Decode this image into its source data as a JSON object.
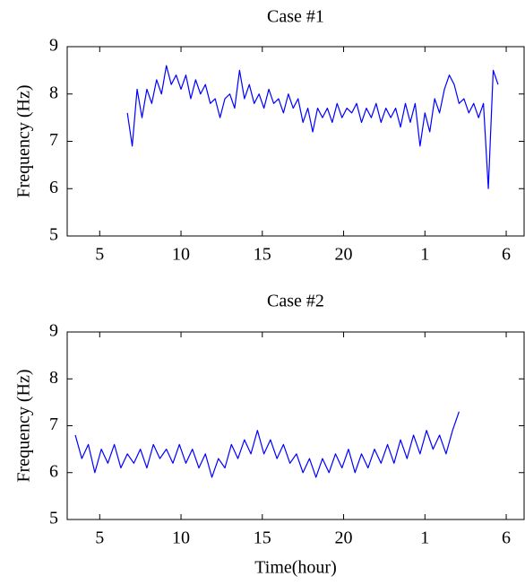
{
  "chart_data": [
    {
      "type": "line",
      "title": "Case #1",
      "ylabel": "Frequency (Hz)",
      "color": "#0000ff",
      "xlim": [
        3,
        31.1
      ],
      "ylim": [
        5,
        9
      ],
      "xticks": [
        5,
        10,
        15,
        20,
        {
          "value": 25,
          "label": "1"
        },
        {
          "value": 30,
          "label": "6"
        }
      ],
      "yticks": [
        5,
        6,
        7,
        8,
        9
      ],
      "x": [
        6.7,
        7.0,
        7.3,
        7.6,
        7.9,
        8.2,
        8.5,
        8.8,
        9.1,
        9.4,
        9.7,
        10.0,
        10.3,
        10.6,
        10.9,
        11.2,
        11.5,
        11.8,
        12.1,
        12.4,
        12.7,
        13.0,
        13.3,
        13.6,
        13.9,
        14.2,
        14.5,
        14.8,
        15.1,
        15.4,
        15.7,
        16.0,
        16.3,
        16.6,
        16.9,
        17.2,
        17.5,
        17.8,
        18.1,
        18.4,
        18.7,
        19.0,
        19.3,
        19.6,
        19.9,
        20.2,
        20.5,
        20.8,
        21.1,
        21.4,
        21.7,
        22.0,
        22.3,
        22.6,
        22.9,
        23.2,
        23.5,
        23.8,
        24.1,
        24.4,
        24.7,
        25.0,
        25.3,
        25.6,
        25.9,
        26.2,
        26.5,
        26.8,
        27.1,
        27.4,
        27.7,
        28.0,
        28.3,
        28.6,
        28.9,
        29.2,
        29.5
      ],
      "values": [
        7.6,
        6.9,
        8.1,
        7.5,
        8.1,
        7.8,
        8.3,
        8.0,
        8.6,
        8.2,
        8.4,
        8.1,
        8.4,
        7.9,
        8.3,
        8.0,
        8.2,
        7.8,
        7.9,
        7.5,
        7.9,
        8.0,
        7.7,
        8.5,
        7.9,
        8.2,
        7.8,
        8.0,
        7.7,
        8.1,
        7.8,
        7.9,
        7.6,
        8.0,
        7.7,
        7.9,
        7.4,
        7.7,
        7.2,
        7.7,
        7.5,
        7.7,
        7.4,
        7.8,
        7.5,
        7.7,
        7.6,
        7.8,
        7.4,
        7.7,
        7.5,
        7.8,
        7.4,
        7.7,
        7.5,
        7.7,
        7.3,
        7.8,
        7.4,
        7.8,
        6.9,
        7.6,
        7.2,
        7.9,
        7.6,
        8.1,
        8.4,
        8.2,
        7.8,
        7.9,
        7.6,
        7.8,
        7.5,
        7.8,
        6.0,
        8.5,
        8.2
      ]
    },
    {
      "type": "line",
      "title": "Case #2",
      "ylabel": "Frequency (Hz)",
      "xlabel": "Time(hour)",
      "color": "#0000ff",
      "xlim": [
        3,
        31.1
      ],
      "ylim": [
        5,
        9
      ],
      "xticks": [
        5,
        10,
        15,
        20,
        {
          "value": 25,
          "label": "1"
        },
        {
          "value": 30,
          "label": "6"
        }
      ],
      "yticks": [
        5,
        6,
        7,
        8,
        9
      ],
      "x": [
        3.5,
        3.9,
        4.3,
        4.7,
        5.1,
        5.5,
        5.9,
        6.3,
        6.7,
        7.1,
        7.5,
        7.9,
        8.3,
        8.7,
        9.1,
        9.5,
        9.9,
        10.3,
        10.7,
        11.1,
        11.5,
        11.9,
        12.3,
        12.7,
        13.1,
        13.5,
        13.9,
        14.3,
        14.7,
        15.1,
        15.5,
        15.9,
        16.3,
        16.7,
        17.1,
        17.5,
        17.9,
        18.3,
        18.7,
        19.1,
        19.5,
        19.9,
        20.3,
        20.7,
        21.1,
        21.5,
        21.9,
        22.3,
        22.7,
        23.1,
        23.5,
        23.9,
        24.3,
        24.7,
        25.1,
        25.5,
        25.9,
        26.3,
        26.7,
        27.1
      ],
      "values": [
        6.8,
        6.3,
        6.6,
        6.0,
        6.5,
        6.2,
        6.6,
        6.1,
        6.4,
        6.2,
        6.5,
        6.1,
        6.6,
        6.3,
        6.5,
        6.2,
        6.6,
        6.2,
        6.5,
        6.1,
        6.4,
        5.9,
        6.3,
        6.1,
        6.6,
        6.3,
        6.7,
        6.4,
        6.9,
        6.4,
        6.7,
        6.3,
        6.6,
        6.2,
        6.4,
        6.0,
        6.3,
        5.9,
        6.3,
        6.0,
        6.4,
        6.1,
        6.5,
        6.0,
        6.4,
        6.1,
        6.5,
        6.2,
        6.6,
        6.2,
        6.7,
        6.3,
        6.8,
        6.4,
        6.9,
        6.5,
        6.8,
        6.4,
        6.9,
        7.3
      ]
    }
  ]
}
